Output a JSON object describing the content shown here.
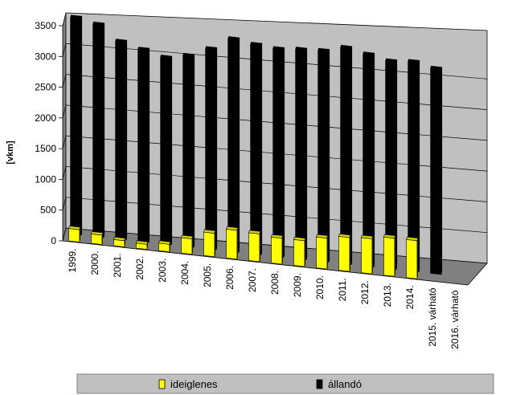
{
  "chart_data": {
    "type": "bar",
    "title": "",
    "xlabel": "",
    "ylabel": "[vkm]",
    "ylim": [
      0,
      3500
    ],
    "yticks": [
      0,
      500,
      1000,
      1500,
      2000,
      2500,
      3000,
      3500
    ],
    "categories": [
      "1999.",
      "2000.",
      "2001.",
      "2002.",
      "2003.",
      "2004.",
      "2005.",
      "2006.",
      "2007.",
      "2008.",
      "2009.",
      "2010.",
      "2011.",
      "2012.",
      "2013.",
      "2014.",
      "2015. várható",
      "2016. várható"
    ],
    "series": [
      {
        "name": "ideiglenes",
        "values": [
          200,
          150,
          100,
          80,
          120,
          250,
          380,
          470,
          450,
          420,
          420,
          500,
          550,
          570,
          620,
          620,
          0,
          0
        ]
      },
      {
        "name": "állandó",
        "values": [
          3520,
          3450,
          3210,
          3120,
          3030,
          3100,
          3250,
          3450,
          3400,
          3370,
          3400,
          3420,
          3510,
          3440,
          3370,
          3400,
          3330,
          0
        ]
      }
    ],
    "grid": true,
    "legend_position": "bottom",
    "colors": {
      "ideiglenes": "#ffff00",
      "állandó": "#000000",
      "wall": "#c0c0c0",
      "floor": "#808080"
    }
  }
}
